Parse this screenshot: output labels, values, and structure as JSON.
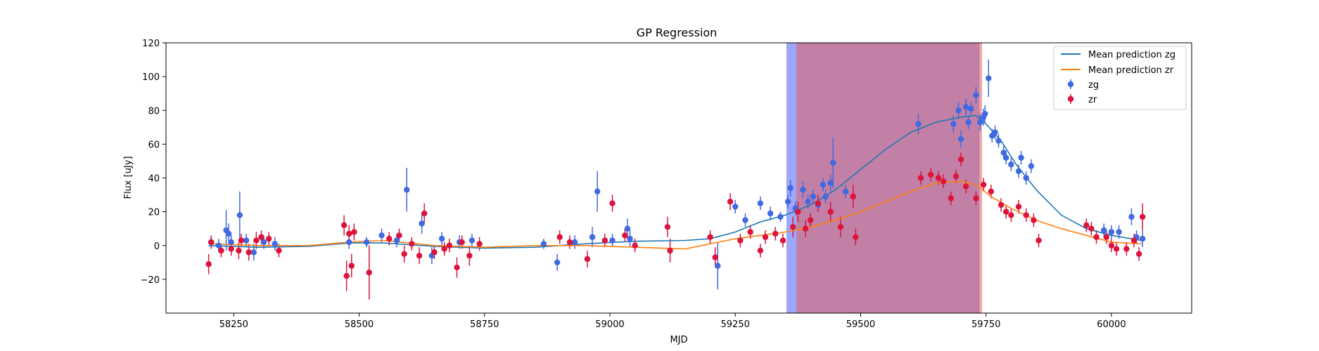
{
  "chart_data": {
    "type": "scatter",
    "title": "GP Regression",
    "xlabel": "MJD",
    "ylabel": "Flux [uJy]",
    "xlim": [
      58115,
      60160
    ],
    "ylim": [
      -40,
      120
    ],
    "xticks": [
      58250,
      58500,
      58750,
      59000,
      59250,
      59500,
      59750,
      60000
    ],
    "yticks": [
      -20,
      0,
      20,
      40,
      60,
      80,
      100,
      120
    ],
    "grid": false,
    "legend_position": "top-right",
    "legend": [
      "Mean prediction zg",
      "Mean prediction zr",
      "zg",
      "zr"
    ],
    "colors": {
      "zg_line": "#1f77b4",
      "zr_line": "#ff7f0e",
      "zg_points": "#4169e1",
      "zr_points": "#dc143c",
      "span_zg": "#4d5ff5",
      "span_zr": "#e06060"
    },
    "shaded_regions": [
      {
        "band": "zg",
        "x": [
          59352,
          59737
        ],
        "color": "#4d5ff5"
      },
      {
        "band": "zr",
        "x": [
          59372,
          59742
        ],
        "color": "#e06060"
      }
    ],
    "lines": [
      {
        "name": "Mean prediction zg",
        "x": [
          58200,
          58300,
          58400,
          58480,
          58550,
          58650,
          58750,
          58850,
          58950,
          59050,
          59150,
          59200,
          59250,
          59300,
          59350,
          59400,
          59450,
          59500,
          59550,
          59600,
          59650,
          59700,
          59730,
          59750,
          59780,
          59810,
          59850,
          59900,
          59950,
          60000,
          60060
        ],
        "y": [
          0,
          -1,
          -0.5,
          1.5,
          1.5,
          -0.5,
          -1.5,
          -1,
          1,
          2.5,
          3,
          4,
          8,
          14,
          18,
          24,
          33,
          45,
          57,
          67,
          73,
          76,
          77,
          72,
          62,
          48,
          33,
          18,
          10,
          6,
          3
        ]
      },
      {
        "name": "Mean prediction zr",
        "x": [
          58200,
          58300,
          58400,
          58480,
          58550,
          58650,
          58750,
          58850,
          58950,
          59050,
          59150,
          59200,
          59250,
          59300,
          59350,
          59400,
          59450,
          59500,
          59550,
          59600,
          59650,
          59700,
          59730,
          59760,
          59800,
          59850,
          59900,
          59950,
          60000,
          60060
        ],
        "y": [
          1,
          0,
          0,
          2,
          3,
          0,
          -1,
          0,
          0,
          -1,
          -2,
          1,
          4,
          6,
          8,
          11,
          15,
          20,
          26,
          32,
          37,
          38,
          36,
          29,
          22,
          15,
          10,
          6,
          2,
          1
        ]
      }
    ],
    "series": [
      {
        "name": "zg",
        "points": [
          [
            58205,
            2,
            3
          ],
          [
            58220,
            0,
            4
          ],
          [
            58235,
            9,
            12
          ],
          [
            58240,
            7,
            6
          ],
          [
            58245,
            2,
            4
          ],
          [
            58262,
            18,
            14
          ],
          [
            58275,
            3,
            4
          ],
          [
            58290,
            -4,
            5
          ],
          [
            58310,
            2,
            4
          ],
          [
            58332,
            1,
            4
          ],
          [
            58480,
            2,
            4
          ],
          [
            58515,
            2,
            3
          ],
          [
            58545,
            6,
            4
          ],
          [
            58575,
            3,
            4
          ],
          [
            58595,
            33,
            13
          ],
          [
            58625,
            13,
            6
          ],
          [
            58645,
            -6,
            5
          ],
          [
            58665,
            4,
            4
          ],
          [
            58700,
            2,
            4
          ],
          [
            58725,
            3,
            4
          ],
          [
            58868,
            1,
            3
          ],
          [
            58895,
            -10,
            5
          ],
          [
            58930,
            2,
            4
          ],
          [
            58965,
            5,
            6
          ],
          [
            58975,
            32,
            12
          ],
          [
            59005,
            3,
            4
          ],
          [
            59035,
            10,
            6
          ],
          [
            59040,
            4,
            5
          ],
          [
            59215,
            -12,
            14
          ],
          [
            59250,
            23,
            4
          ],
          [
            59270,
            15,
            4
          ],
          [
            59300,
            25,
            4
          ],
          [
            59320,
            19,
            4
          ],
          [
            59340,
            17,
            3
          ],
          [
            59355,
            26,
            4
          ],
          [
            59360,
            34,
            5
          ],
          [
            59370,
            22,
            4
          ],
          [
            59385,
            33,
            5
          ],
          [
            59395,
            26,
            4
          ],
          [
            59405,
            29,
            4
          ],
          [
            59415,
            24,
            4
          ],
          [
            59425,
            36,
            4
          ],
          [
            59430,
            29,
            4
          ],
          [
            59440,
            37,
            5
          ],
          [
            59445,
            49,
            15
          ],
          [
            59470,
            32,
            4
          ],
          [
            59615,
            72,
            6
          ],
          [
            59685,
            72,
            5
          ],
          [
            59695,
            80,
            5
          ],
          [
            59700,
            63,
            5
          ],
          [
            59710,
            82,
            5
          ],
          [
            59715,
            73,
            4
          ],
          [
            59720,
            81,
            4
          ],
          [
            59730,
            89,
            5
          ],
          [
            59738,
            73,
            5
          ],
          [
            59745,
            76,
            5
          ],
          [
            59748,
            78,
            5
          ],
          [
            59755,
            99,
            11
          ],
          [
            59762,
            65,
            4
          ],
          [
            59768,
            67,
            4
          ],
          [
            59775,
            62,
            4
          ],
          [
            59785,
            55,
            4
          ],
          [
            59790,
            52,
            4
          ],
          [
            59800,
            48,
            4
          ],
          [
            59815,
            44,
            4
          ],
          [
            59820,
            52,
            4
          ],
          [
            59830,
            40,
            4
          ],
          [
            59840,
            47,
            4
          ],
          [
            59985,
            9,
            4
          ],
          [
            60000,
            8,
            4
          ],
          [
            60015,
            8,
            4
          ],
          [
            60040,
            17,
            5
          ],
          [
            60050,
            5,
            4
          ],
          [
            60062,
            4,
            5
          ]
        ]
      },
      {
        "name": "zr",
        "points": [
          [
            58200,
            -11,
            6
          ],
          [
            58205,
            2,
            4
          ],
          [
            58225,
            -3,
            4
          ],
          [
            58245,
            -2,
            4
          ],
          [
            58260,
            -3,
            5
          ],
          [
            58265,
            3,
            4
          ],
          [
            58280,
            -4,
            5
          ],
          [
            58295,
            3,
            5
          ],
          [
            58305,
            5,
            4
          ],
          [
            58320,
            4,
            4
          ],
          [
            58340,
            -3,
            4
          ],
          [
            58470,
            12,
            6
          ],
          [
            58475,
            -18,
            9
          ],
          [
            58480,
            7,
            5
          ],
          [
            58485,
            -12,
            7
          ],
          [
            58490,
            8,
            5
          ],
          [
            58520,
            -16,
            16
          ],
          [
            58560,
            4,
            4
          ],
          [
            58580,
            6,
            4
          ],
          [
            58590,
            -5,
            5
          ],
          [
            58605,
            1,
            4
          ],
          [
            58620,
            -6,
            5
          ],
          [
            58630,
            19,
            6
          ],
          [
            58650,
            -4,
            4
          ],
          [
            58670,
            -2,
            4
          ],
          [
            58680,
            0,
            4
          ],
          [
            58695,
            -13,
            6
          ],
          [
            58705,
            2,
            4
          ],
          [
            58720,
            -6,
            6
          ],
          [
            58740,
            1,
            4
          ],
          [
            58900,
            5,
            4
          ],
          [
            58920,
            2,
            4
          ],
          [
            58955,
            -8,
            5
          ],
          [
            58990,
            3,
            4
          ],
          [
            59005,
            25,
            5
          ],
          [
            59030,
            6,
            4
          ],
          [
            59050,
            0,
            4
          ],
          [
            59115,
            11,
            6
          ],
          [
            59120,
            -3,
            7
          ],
          [
            59200,
            5,
            4
          ],
          [
            59210,
            -7,
            6
          ],
          [
            59240,
            26,
            5
          ],
          [
            59260,
            3,
            4
          ],
          [
            59280,
            8,
            4
          ],
          [
            59300,
            -3,
            4
          ],
          [
            59310,
            5,
            4
          ],
          [
            59330,
            7,
            4
          ],
          [
            59345,
            3,
            4
          ],
          [
            59365,
            11,
            6
          ],
          [
            59375,
            20,
            6
          ],
          [
            59390,
            10,
            5
          ],
          [
            59400,
            15,
            4
          ],
          [
            59415,
            25,
            5
          ],
          [
            59440,
            20,
            6
          ],
          [
            59460,
            11,
            6
          ],
          [
            59485,
            29,
            7
          ],
          [
            59490,
            5,
            5
          ],
          [
            59620,
            40,
            4
          ],
          [
            59640,
            42,
            4
          ],
          [
            59655,
            40,
            4
          ],
          [
            59665,
            38,
            4
          ],
          [
            59680,
            28,
            4
          ],
          [
            59690,
            41,
            4
          ],
          [
            59700,
            51,
            4
          ],
          [
            59710,
            35,
            4
          ],
          [
            59730,
            28,
            4
          ],
          [
            59745,
            36,
            4
          ],
          [
            59760,
            32,
            4
          ],
          [
            59780,
            24,
            4
          ],
          [
            59790,
            20,
            4
          ],
          [
            59800,
            18,
            4
          ],
          [
            59815,
            23,
            4
          ],
          [
            59830,
            18,
            4
          ],
          [
            59845,
            15,
            4
          ],
          [
            59855,
            3,
            4
          ],
          [
            59950,
            12,
            4
          ],
          [
            59960,
            10,
            4
          ],
          [
            59970,
            5,
            4
          ],
          [
            59990,
            5,
            4
          ],
          [
            60000,
            0,
            4
          ],
          [
            60010,
            -2,
            4
          ],
          [
            60030,
            -2,
            4
          ],
          [
            60045,
            3,
            4
          ],
          [
            60055,
            -5,
            4
          ],
          [
            60062,
            17,
            8
          ]
        ]
      }
    ]
  }
}
